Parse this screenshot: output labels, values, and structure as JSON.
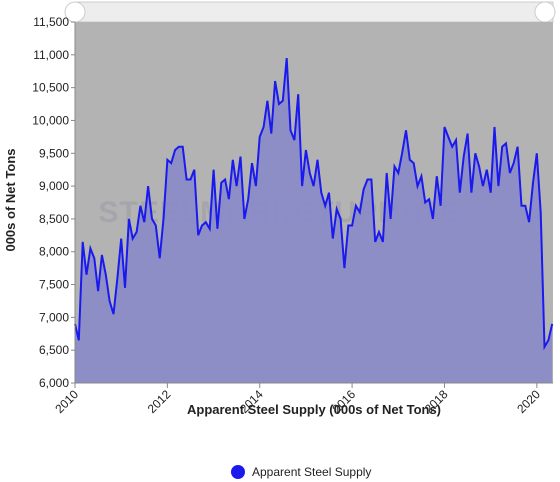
{
  "chart_data": {
    "type": "area",
    "x_label": "Apparent Steel Supply (000s of Net Tons)",
    "y_label": "000s of Net Tons",
    "watermark": "STEELMARKETUPDATE",
    "series": [
      {
        "name": "Apparent Steel Supply",
        "color": "#1a1aee",
        "fill": "#8a8ac9",
        "x": [
          2010,
          2010.083,
          2010.167,
          2010.25,
          2010.333,
          2010.417,
          2010.5,
          2010.583,
          2010.667,
          2010.75,
          2010.833,
          2010.917,
          2011,
          2011.083,
          2011.167,
          2011.25,
          2011.333,
          2011.417,
          2011.5,
          2011.583,
          2011.667,
          2011.75,
          2011.833,
          2011.917,
          2012,
          2012.083,
          2012.167,
          2012.25,
          2012.333,
          2012.417,
          2012.5,
          2012.583,
          2012.667,
          2012.75,
          2012.833,
          2012.917,
          2013,
          2013.083,
          2013.167,
          2013.25,
          2013.333,
          2013.417,
          2013.5,
          2013.583,
          2013.667,
          2013.75,
          2013.833,
          2013.917,
          2014,
          2014.083,
          2014.167,
          2014.25,
          2014.333,
          2014.417,
          2014.5,
          2014.583,
          2014.667,
          2014.75,
          2014.833,
          2014.917,
          2015,
          2015.083,
          2015.167,
          2015.25,
          2015.333,
          2015.417,
          2015.5,
          2015.583,
          2015.667,
          2015.75,
          2015.833,
          2015.917,
          2016,
          2016.083,
          2016.167,
          2016.25,
          2016.333,
          2016.417,
          2016.5,
          2016.583,
          2016.667,
          2016.75,
          2016.833,
          2016.917,
          2017,
          2017.083,
          2017.167,
          2017.25,
          2017.333,
          2017.417,
          2017.5,
          2017.583,
          2017.667,
          2017.75,
          2017.833,
          2017.917,
          2018,
          2018.083,
          2018.167,
          2018.25,
          2018.333,
          2018.417,
          2018.5,
          2018.583,
          2018.667,
          2018.75,
          2018.833,
          2018.917,
          2019,
          2019.083,
          2019.167,
          2019.25,
          2019.333,
          2019.417,
          2019.5,
          2019.583,
          2019.667,
          2019.75,
          2019.833,
          2019.917,
          2020,
          2020.083,
          2020.167,
          2020.25,
          2020.333
        ],
        "values": [
          6900,
          6650,
          8150,
          7650,
          8050,
          7900,
          7400,
          7950,
          7650,
          7250,
          7050,
          7600,
          8200,
          7450,
          8500,
          8200,
          8300,
          8700,
          8450,
          9000,
          8500,
          8400,
          7900,
          8500,
          9400,
          9350,
          9550,
          9600,
          9600,
          9100,
          9100,
          9250,
          8250,
          8400,
          8450,
          8350,
          9250,
          8350,
          9050,
          9100,
          8800,
          9400,
          9000,
          9450,
          8500,
          8800,
          9350,
          9000,
          9750,
          9900,
          10300,
          9800,
          10600,
          10250,
          10300,
          10950,
          9850,
          9700,
          10400,
          9000,
          9550,
          9200,
          9000,
          9400,
          8900,
          8700,
          8900,
          8200,
          8650,
          8500,
          7750,
          8400,
          8400,
          8700,
          8600,
          8950,
          9100,
          9100,
          8150,
          8300,
          8150,
          9200,
          8500,
          9300,
          9200,
          9500,
          9850,
          9400,
          9350,
          9000,
          9150,
          8750,
          8800,
          8500,
          9150,
          8700,
          9900,
          9750,
          9600,
          9700,
          8900,
          9450,
          9800,
          8900,
          9500,
          9300,
          9000,
          9250,
          8900,
          9900,
          9000,
          9600,
          9650,
          9200,
          9350,
          9600,
          8700,
          8700,
          8450,
          9050,
          9500,
          8600,
          6550,
          6650,
          6900
        ]
      }
    ],
    "xlim": [
      2010,
      2020.35
    ],
    "xticks": [
      2010,
      2012,
      2014,
      2016,
      2018,
      2020
    ],
    "ylim": [
      6000,
      11500
    ],
    "yticks": [
      {
        "value": 6000,
        "label": "6,000"
      },
      {
        "value": 6500,
        "label": "6,500"
      },
      {
        "value": 7000,
        "label": "7,000"
      },
      {
        "value": 7500,
        "label": "7,500"
      },
      {
        "value": 8000,
        "label": "8,000"
      },
      {
        "value": 8500,
        "label": "8,500"
      },
      {
        "value": 9000,
        "label": "9,000"
      },
      {
        "value": 9500,
        "label": "9,500"
      },
      {
        "value": 10000,
        "label": "10,000"
      },
      {
        "value": 10500,
        "label": "10,500"
      },
      {
        "value": 11000,
        "label": "11,000"
      },
      {
        "value": 11500,
        "label": "11,500"
      }
    ],
    "background": "#b3b3b3",
    "legend": "bottom"
  }
}
